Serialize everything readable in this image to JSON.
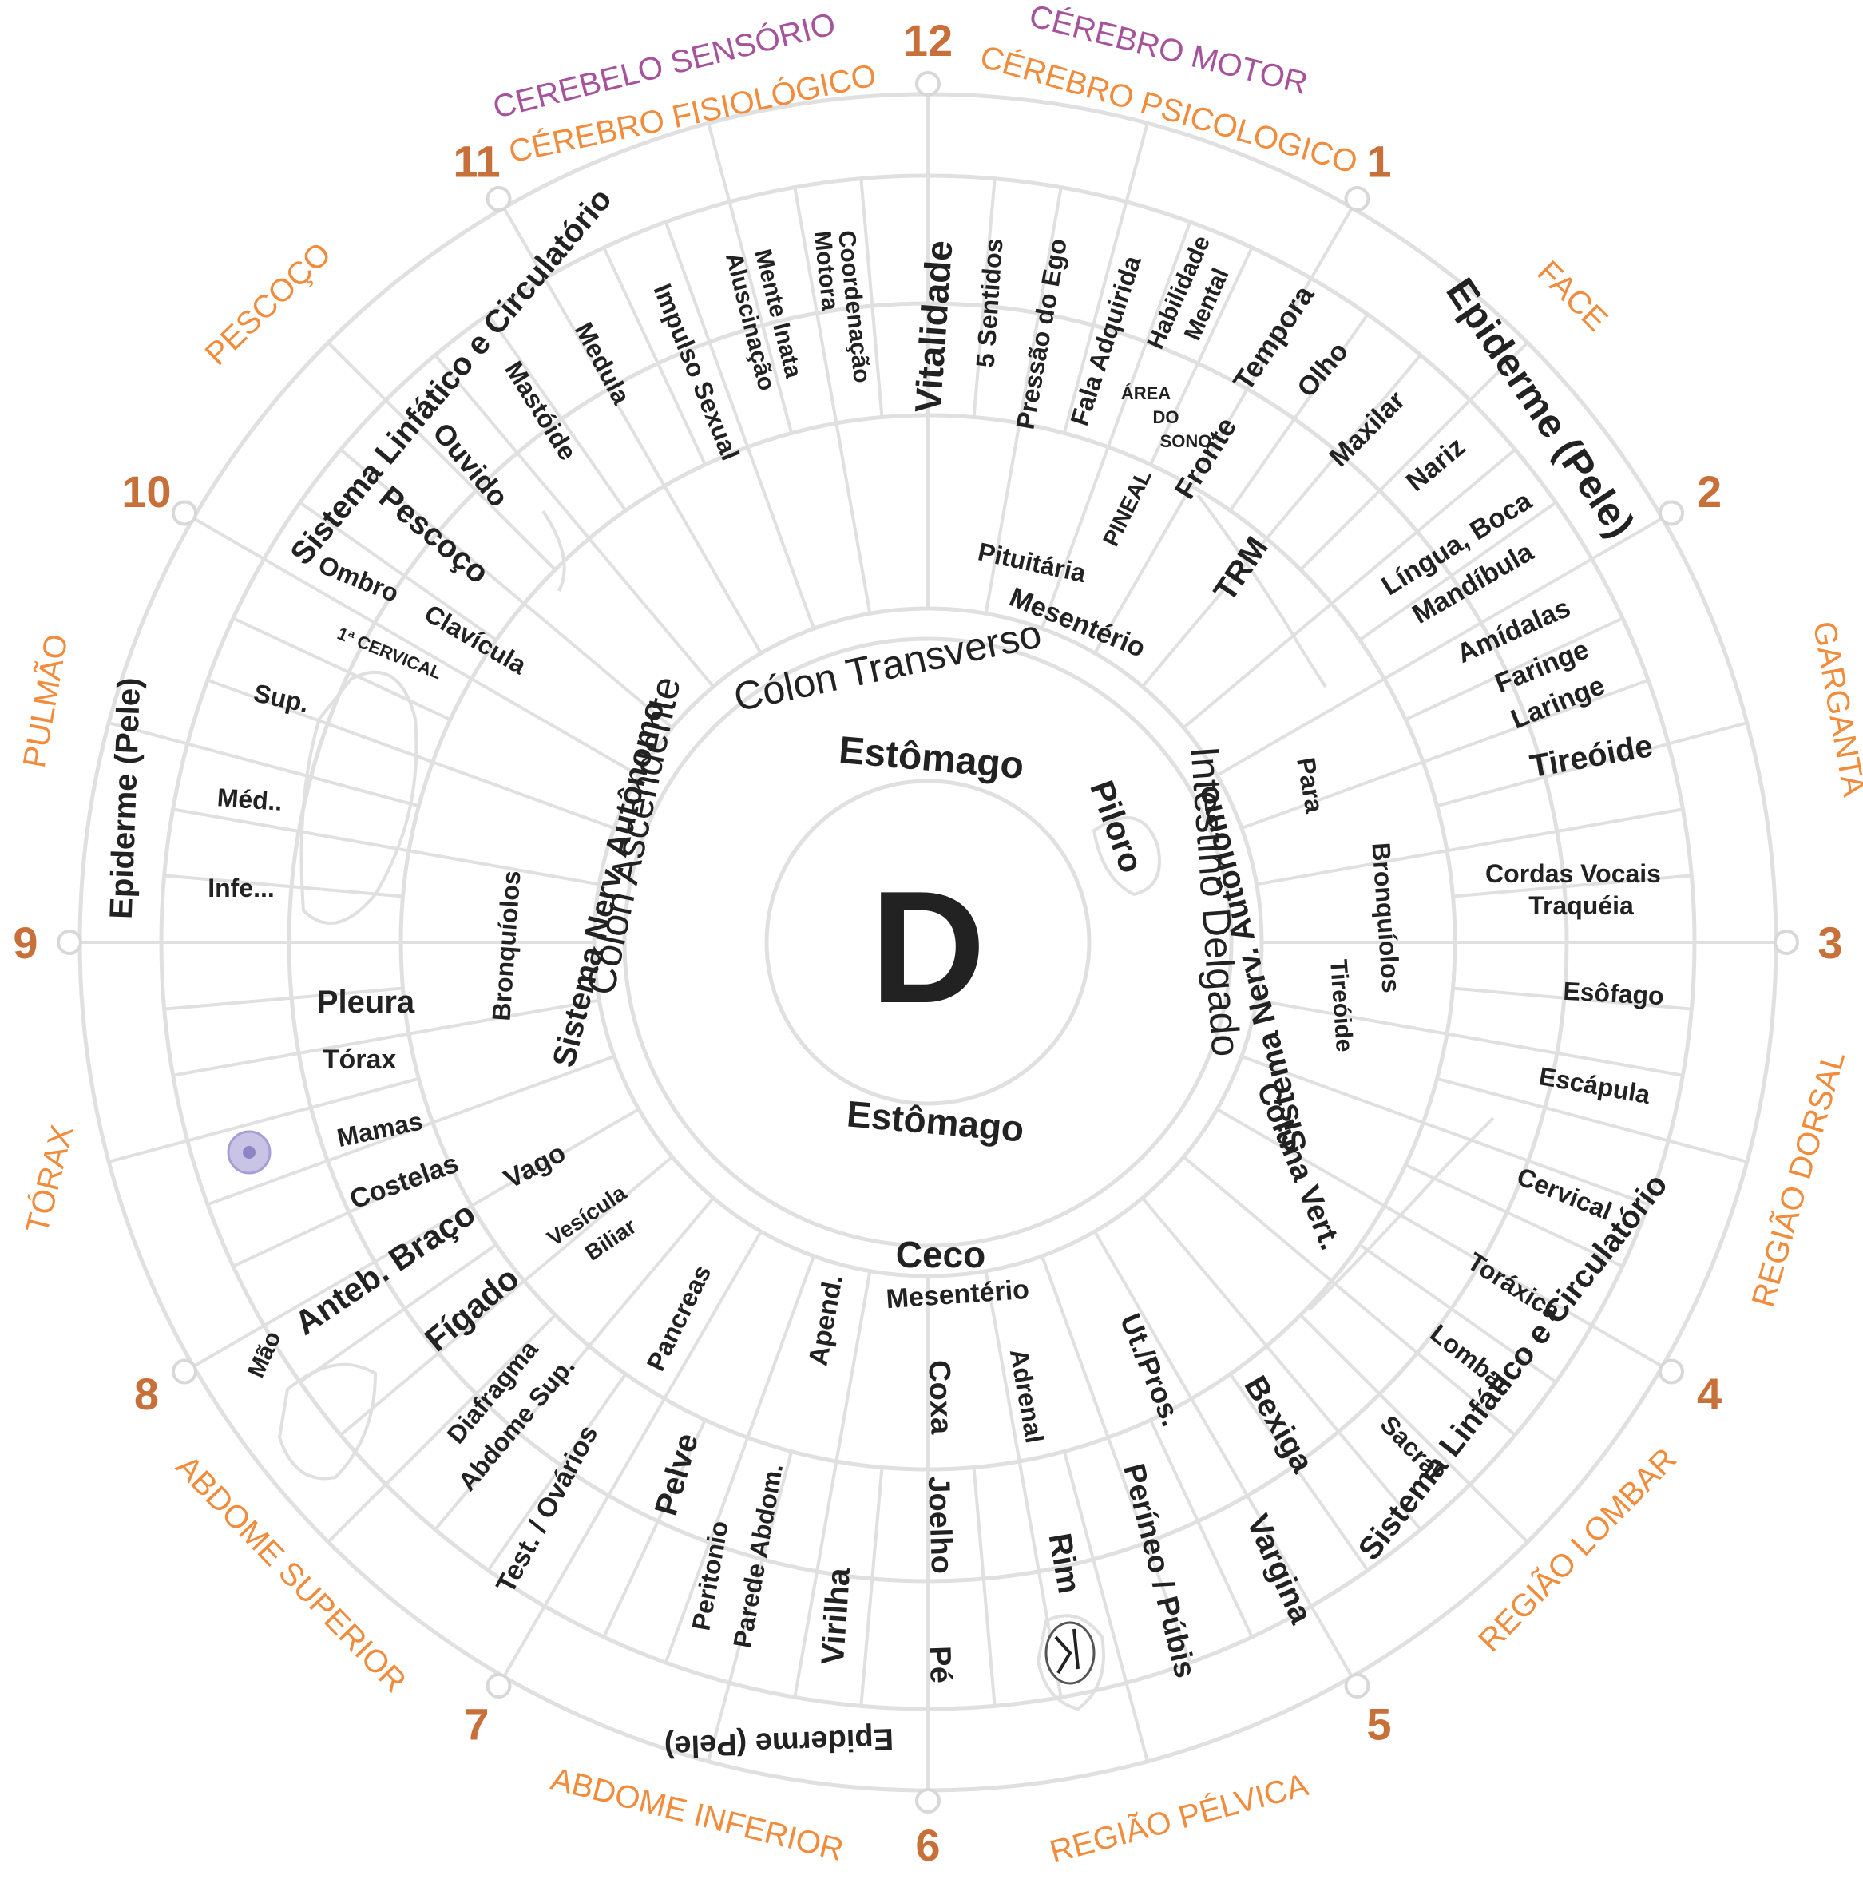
{
  "center_letter": "D",
  "colors": {
    "hour": "#c8703a",
    "zone_orange": "#f08c3c",
    "zone_purple": "#a6539b",
    "lines": "#e0e0e0",
    "text": "#222222"
  },
  "hours": [
    "12",
    "1",
    "2",
    "3",
    "4",
    "5",
    "6",
    "7",
    "8",
    "9",
    "10",
    "11"
  ],
  "zones": {
    "cerebelo_sensorio": "CEREBELO SENSÓRIO",
    "cerebro_fisiologico": "CÉREBRO FISIOLÓGICO",
    "cerebro_motor": "CÉREBRO MOTOR",
    "cerebro_psicologico": "CÉREBRO PSICOLOGICO",
    "face": "FACE",
    "garganta": "GARGANTA",
    "regiao_dorsal": "REGIÃO DORSAL",
    "regiao_lombar": "REGIÃO LOMBAR",
    "regiao_pelvica": "REGIÃO PÉLVICA",
    "abdome_inferior": "ABDOME INFERIOR",
    "abdome_superior": "ABDOME SUPERIOR",
    "torax": "TÓRAX",
    "pulmao": "PULMÃO",
    "pescoco": "PESCOÇO"
  },
  "organs": {
    "estomago_top": "Estômago",
    "estomago_bottom": "Estômago",
    "piloro": "Piloro",
    "colon_transverso": "Cólon Transverso",
    "colon_ascendente": "Cólon Ascendente",
    "intestino_delgado": "Intestino Delgado",
    "sistema_nerv_left": "Sistema  Nerv.  Autônomo",
    "sistema_nerv_right": "Sistema  Nerv.  Autônomo",
    "ceco": "Ceco",
    "mesenterio_bottom": "Mesentério",
    "mesenterio_top": "Mesentério",
    "pituitaria": "Pituitária",
    "pineal": "PINEAL",
    "area_do_sono": [
      "ÁREA",
      "DO",
      "SONO"
    ],
    "fronte": "Fronte",
    "tempora": "Tempora",
    "trm": "TRM",
    "olho": "Olho",
    "maxilar": "Maxilar",
    "nariz": "Nariz",
    "lingua_boca": [
      "Língua, Boca",
      "Mandíbula"
    ],
    "amidalas": [
      "Amídalas",
      "Faringe",
      "Laringe"
    ],
    "epiderme_top_right": "Epiderme (Pele)",
    "tireoide_big": "Tireóide",
    "cordas_vocais": [
      "Cordas Vocais",
      "Traquéia"
    ],
    "esofago": "Esôfago",
    "escapula": "Escápula",
    "cervical": "Cervical",
    "toraxica": "Toráxica",
    "lombar": "Lombar",
    "sacral": "Sacral",
    "sistema_linf_right": "Sistema Linfático e Circulatório",
    "coluna_vert": "Coluna Vert.",
    "para": "Para",
    "bronquiolos_right": "Bronquíolos",
    "tireoide_small": "Tireóide",
    "bexiga": "Bexiga",
    "vargina": "Vargina",
    "ut_pros": "Ut./Pros.",
    "perineo": "Períneo / Púbis",
    "adrenal": "Adrenal",
    "rim": "Rim",
    "coxa": "Coxa",
    "joelho": "Joelho",
    "pe": "Pé",
    "apend": "Apend.",
    "virilha": "Virilha",
    "peritonio": [
      "Peritonio",
      "Parede Abdom."
    ],
    "pelve": "Pelve",
    "pancreas": "Pancreas",
    "test_ovarios": "Test. / Ovários",
    "diafragma": [
      "Diafragma",
      "Abdome Sup."
    ],
    "figado": "Fígado",
    "vesicula": [
      "Vesícula",
      "Biliar"
    ],
    "mao": "Mão",
    "anteb_braco": "Anteb. Braço",
    "vago": "Vago",
    "costelas": "Costelas",
    "mamas": "Mamas",
    "torax_small": "Tórax",
    "pleura": "Pleura",
    "bronquiolos_left": "Bronquíolos",
    "infe": "Infe...",
    "med": "Méd..",
    "sup": "Sup.",
    "epiderme_left": "Epiderme  (Pele)",
    "cervical_1a": "1ª CERVICAL",
    "ombro": "Ombro",
    "clavicula": "Clavícula",
    "pescoco_small": "Pescoço",
    "ouvido": "Ouvido",
    "mastoide": "Mastóide",
    "sistema_linf_left": "Sistema Linfático e Circulatório",
    "medula": "Medula",
    "impulso_sexual": "Impulso Sexual",
    "mente_inata": [
      "Mente Inata",
      "Aluscinação"
    ],
    "coordenacao": [
      "Coordenação",
      "Motora"
    ],
    "vitalidade": "Vitalidade",
    "cinco_sentidos": "5 Sentidos",
    "pressao_ego": "Pressão do Ego",
    "fala_adquirida": "Fala Adquirida",
    "habilidade": [
      "Habilidade",
      "Mental"
    ],
    "epiderme_bottom": "Epiderme  (Pele)"
  }
}
